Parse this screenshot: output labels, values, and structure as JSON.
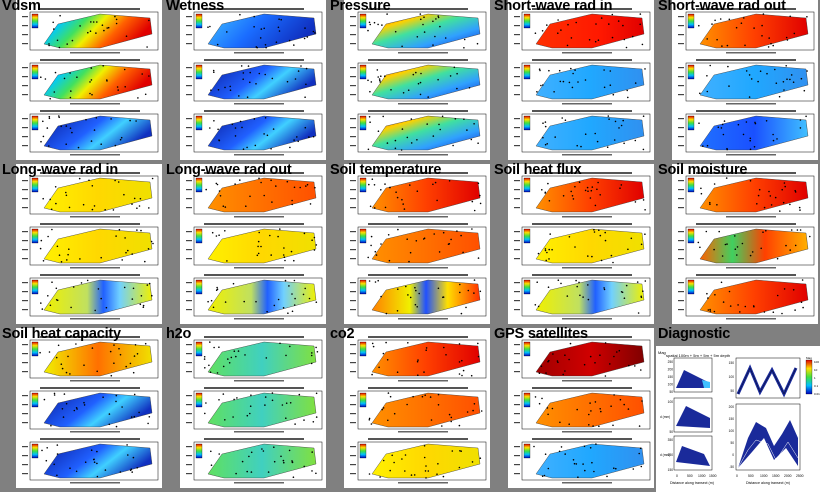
{
  "panel_titles": [
    "Vdsm",
    "Wetness",
    "Pressure",
    "Short-wave rad in",
    "Short-wave rad out",
    "Long-wave rad in",
    "Long-wave rad out",
    "Soil temperature",
    "Soil heat flux",
    "Soil moisture",
    "Soil heat capacity",
    "h2o",
    "co2",
    "GPS satellites",
    "Diagnostic"
  ],
  "map_panels": [
    {
      "schemes": [
        "rainbow",
        "rainbow",
        "blue"
      ]
    },
    {
      "schemes": [
        "cyanblue",
        "blue",
        "blue"
      ]
    },
    {
      "schemes": [
        "rainbowdiag",
        "rainbowdiag",
        "rainbowdiag"
      ]
    },
    {
      "schemes": [
        "red",
        "cyan",
        "cyan"
      ]
    },
    {
      "schemes": [
        "orangered",
        "cyan",
        "blueish"
      ]
    },
    {
      "schemes": [
        "yellow",
        "yellow",
        "yellowblue"
      ]
    },
    {
      "schemes": [
        "orange",
        "yellow",
        "yellowblue"
      ]
    },
    {
      "schemes": [
        "orangered",
        "orange",
        "mixed"
      ]
    },
    {
      "schemes": [
        "orangered",
        "yellow",
        "yellowblue"
      ]
    },
    {
      "schemes": [
        "orangered",
        "mixedgreen",
        "orangered"
      ]
    },
    {
      "schemes": [
        "yelloworange",
        "blue",
        "blue"
      ]
    },
    {
      "schemes": [
        "greencyan",
        "greencyan",
        "greencyan"
      ]
    },
    {
      "schemes": [
        "orangered",
        "orange",
        "yellow"
      ]
    },
    {
      "schemes": [
        "darkred",
        "orange",
        "cyan"
      ]
    }
  ],
  "diagnostic": {
    "label_top_left": "Mag",
    "title": "spatial 100m + 5m + 5m + 5m depth",
    "xlabel_left": "Distance along transect (m)",
    "xlabel_right": "Distance along transect (m)",
    "x_ticks_left": [
      "0",
      "500",
      "1000",
      "1500"
    ],
    "x_ticks_right": [
      "0",
      "500",
      "1000",
      "1500",
      "2000",
      "2500"
    ],
    "y_ticks_top_left": [
      "250",
      "200",
      "150",
      "100",
      "50"
    ],
    "y_ticks_mid_left": [
      "100",
      "50"
    ],
    "y_ticks_bot_left": [
      "350",
      "250",
      "150"
    ],
    "ylabel_mid": "d (mm)",
    "ylabel_bot": "d (mm)",
    "y_ticks_top_right": [
      "150",
      "100",
      "50"
    ],
    "y_ticks_bot_right": [
      "200",
      "150",
      "100",
      "50",
      "0",
      "-50"
    ],
    "colorbar_ticks": [
      "100",
      "10",
      "1",
      "0.1",
      "0.01"
    ],
    "colorbar_label": "Mag"
  },
  "colors": {
    "background": "#808080",
    "panel_bg": "#ffffff",
    "mask": "#ffffff"
  }
}
